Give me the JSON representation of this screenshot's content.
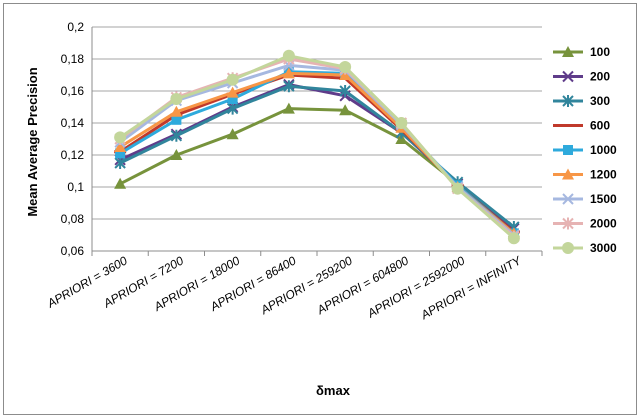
{
  "chart_data": {
    "type": "line",
    "title": "",
    "xlabel": "δmax",
    "ylabel": "Mean Average Precision",
    "ylim": [
      0.06,
      0.2
    ],
    "yticks": [
      "0,06",
      "0,08",
      "0,1",
      "0,12",
      "0,14",
      "0,16",
      "0,18",
      "0,2"
    ],
    "grid": true,
    "legend_position": "right",
    "categories": [
      "APRIORI = 3600",
      "APRIORI = 7200",
      "APRIORI = 18000",
      "APRIORI = 86400",
      "APRIORI = 259200",
      "APRIORI = 604800",
      "APRIORI = 2592000",
      "APRIORI = INFINITY"
    ],
    "series": [
      {
        "name": "100",
        "color": "#77933c",
        "marker": "triangle",
        "values": [
          0.102,
          0.12,
          0.133,
          0.149,
          0.148,
          0.13,
          0.102,
          0.072
        ]
      },
      {
        "name": "200",
        "color": "#5f3c8a",
        "marker": "x",
        "values": [
          0.117,
          0.133,
          0.15,
          0.164,
          0.157,
          0.134,
          0.102,
          0.074
        ]
      },
      {
        "name": "300",
        "color": "#31859c",
        "marker": "star",
        "values": [
          0.115,
          0.132,
          0.149,
          0.163,
          0.16,
          0.134,
          0.103,
          0.075
        ]
      },
      {
        "name": "600",
        "color": "#c0392b",
        "marker": "dash",
        "values": [
          0.122,
          0.145,
          0.158,
          0.17,
          0.168,
          0.136,
          0.101,
          0.072
        ]
      },
      {
        "name": "1000",
        "color": "#2eaadc",
        "marker": "square",
        "values": [
          0.121,
          0.142,
          0.155,
          0.172,
          0.171,
          0.138,
          0.101,
          0.071
        ]
      },
      {
        "name": "1200",
        "color": "#f79646",
        "marker": "triangle",
        "values": [
          0.125,
          0.147,
          0.159,
          0.171,
          0.17,
          0.137,
          0.1,
          0.071
        ]
      },
      {
        "name": "1500",
        "color": "#a6b8e0",
        "marker": "x",
        "values": [
          0.128,
          0.154,
          0.165,
          0.176,
          0.173,
          0.139,
          0.1,
          0.07
        ]
      },
      {
        "name": "2000",
        "color": "#e6b3b3",
        "marker": "star",
        "values": [
          0.13,
          0.156,
          0.168,
          0.18,
          0.174,
          0.14,
          0.099,
          0.069
        ]
      },
      {
        "name": "3000",
        "color": "#c3d69b",
        "marker": "circle",
        "values": [
          0.131,
          0.155,
          0.167,
          0.182,
          0.175,
          0.14,
          0.099,
          0.068
        ]
      }
    ]
  }
}
